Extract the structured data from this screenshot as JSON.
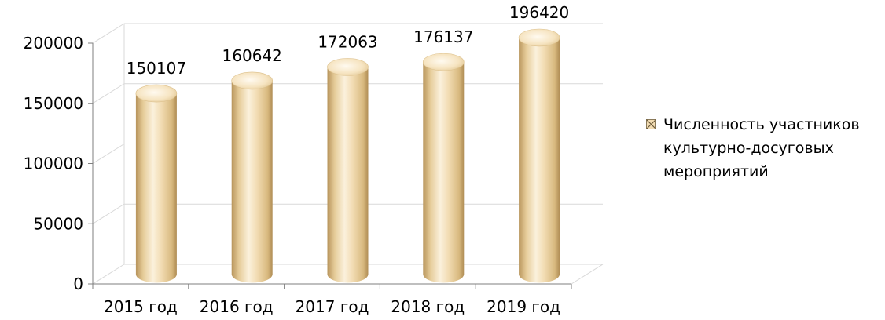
{
  "chart_data": {
    "type": "bar",
    "style": "3d-cylinder",
    "categories": [
      "2015 год",
      "2016 год",
      "2017 год",
      "2018 год",
      "2019 год"
    ],
    "series": [
      {
        "name": "Численность участников культурно-досуговых мероприятий",
        "values": [
          150107,
          160642,
          172063,
          176137,
          196420
        ],
        "color": "#f2dcb3"
      }
    ],
    "data_labels": [
      "150107",
      "160642",
      "172063",
      "176137",
      "196420"
    ],
    "y_ticks": [
      "0",
      "50000",
      "100000",
      "150000",
      "200000"
    ],
    "y_tick_values": [
      0,
      50000,
      100000,
      150000,
      200000
    ],
    "ylim": [
      0,
      200000
    ],
    "grid": true,
    "legend_position": "right",
    "title": "",
    "xlabel": "",
    "ylabel": ""
  },
  "legend": {
    "label": "Численность участников\nкультурно-досуговых\nмероприятий"
  },
  "colors": {
    "bar_light": "#fbf0d8",
    "bar_mid": "#efd6a6",
    "bar_dark": "#c9a76a",
    "grid": "#d9d9d9",
    "axis": "#000000"
  }
}
